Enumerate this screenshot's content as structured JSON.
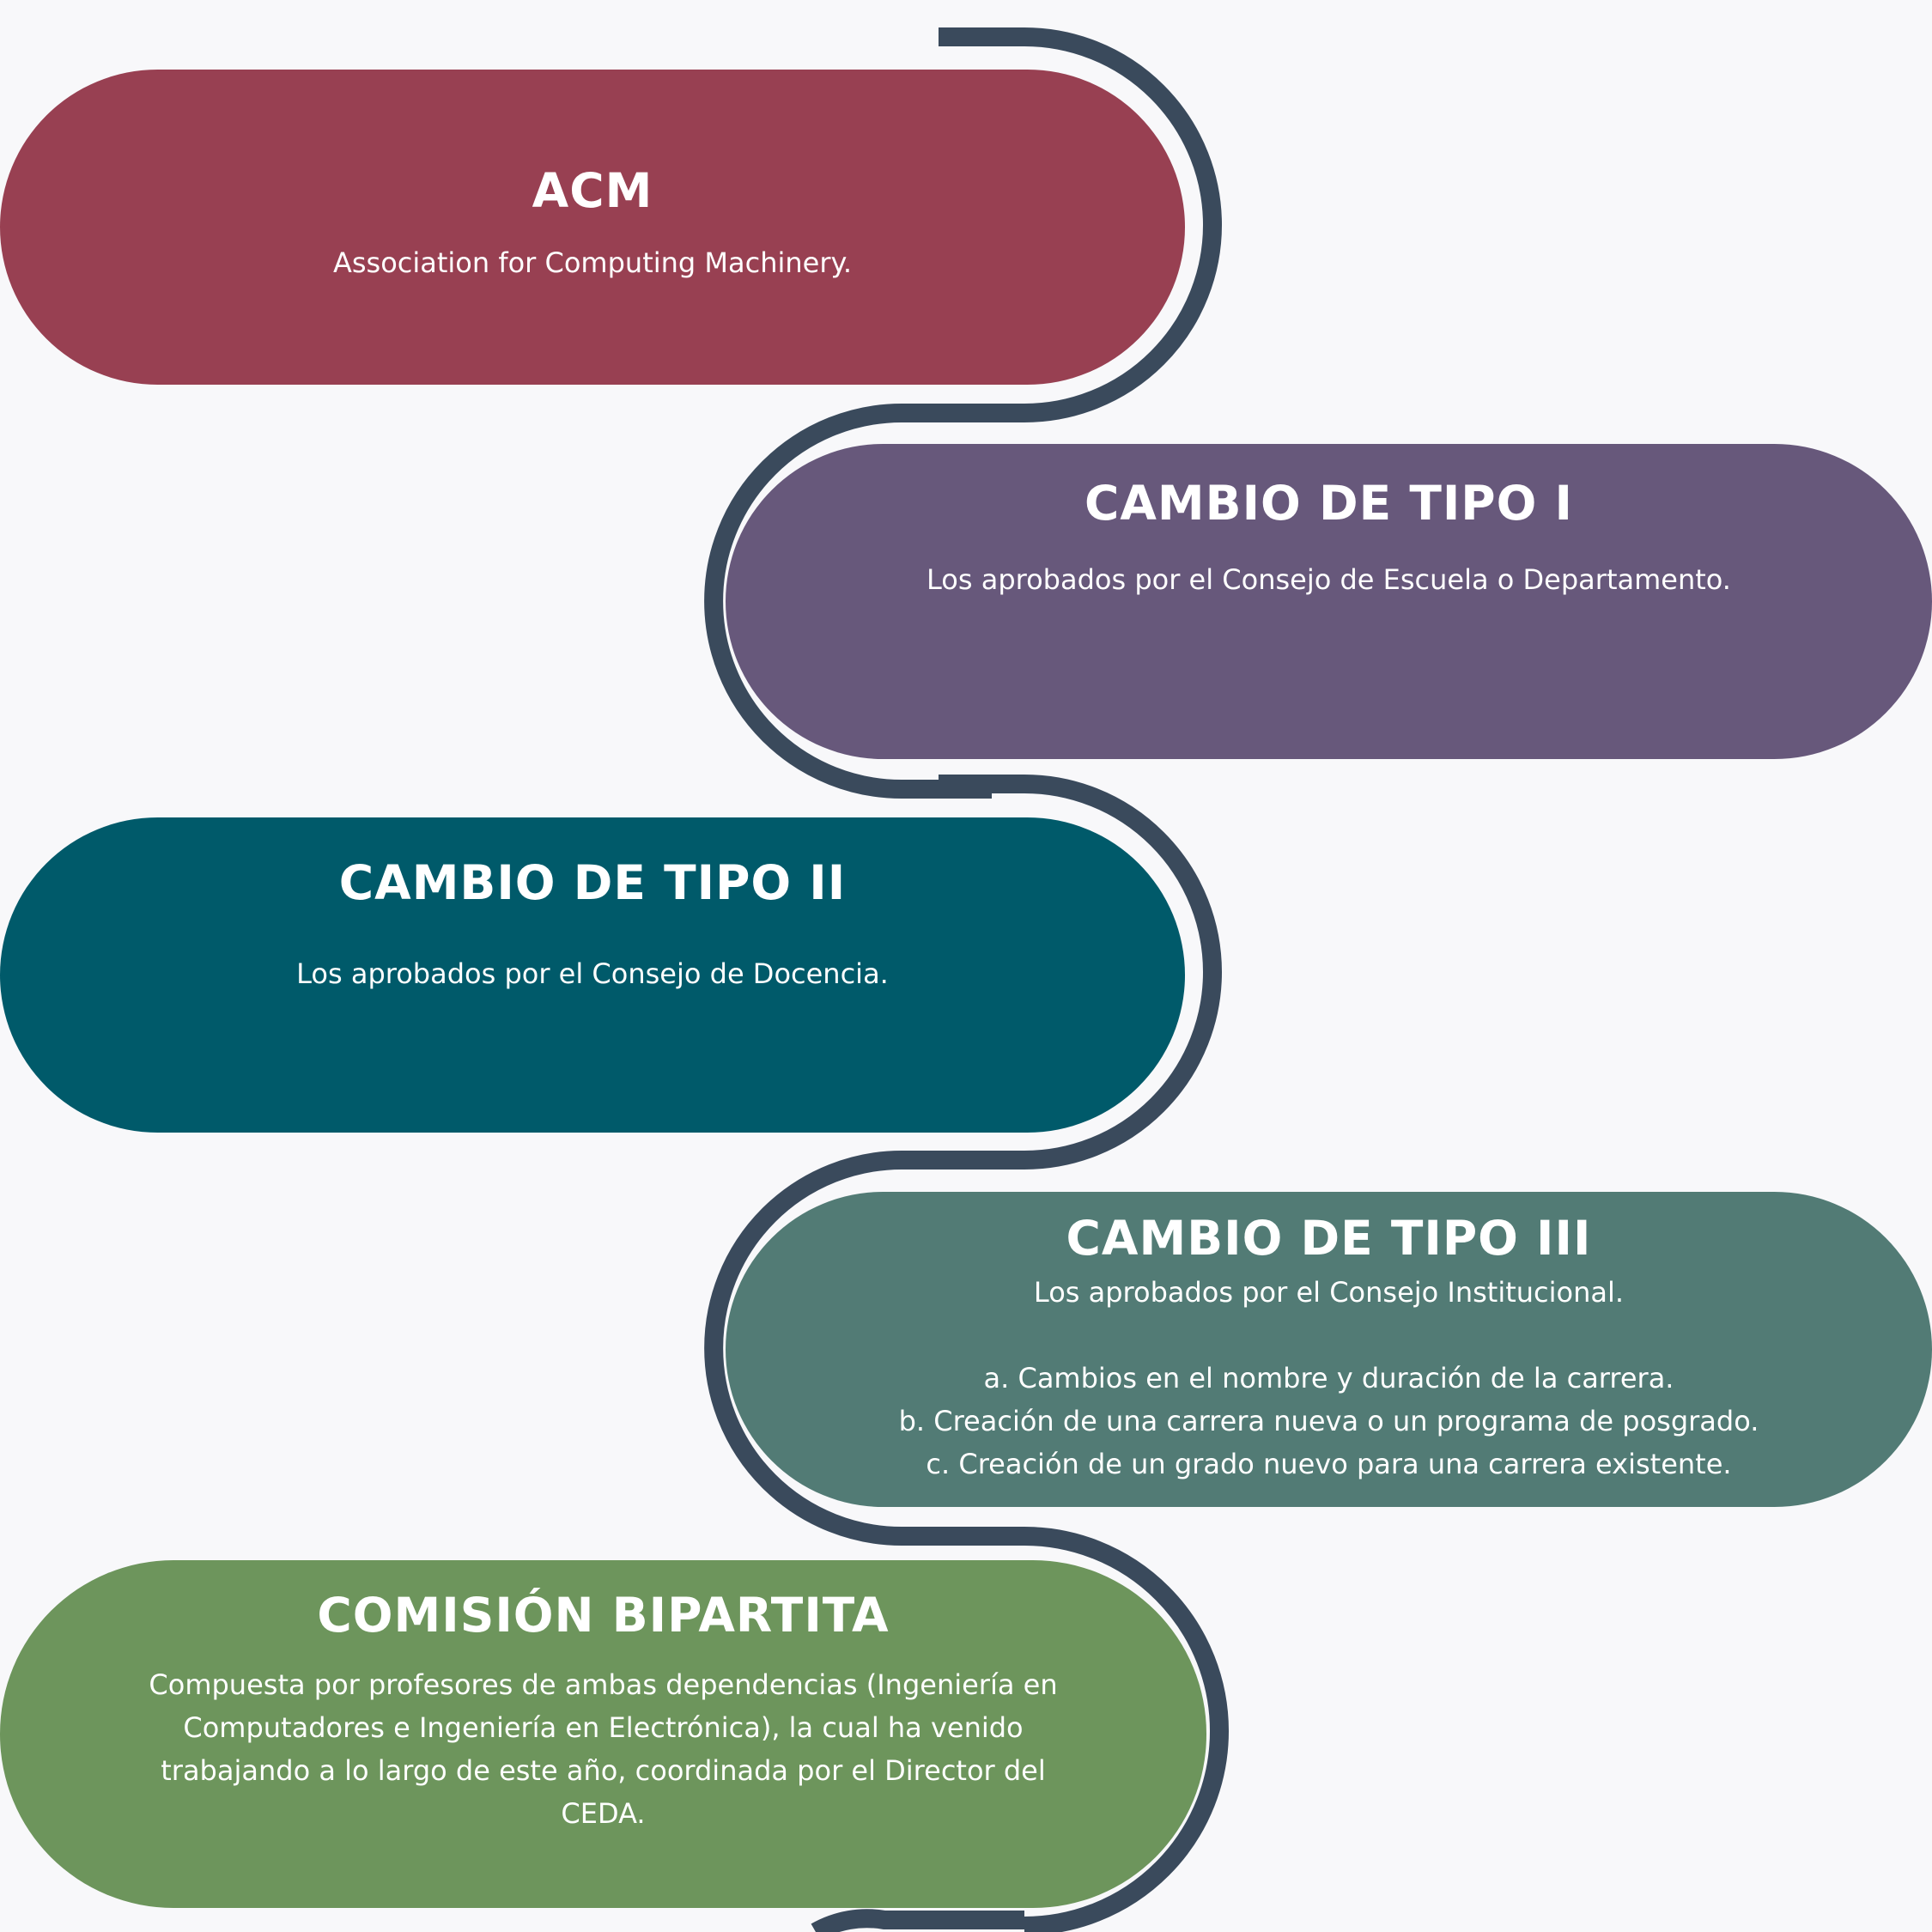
{
  "colors": {
    "background": "#f8f8fa",
    "connector": "#3a4a5c",
    "acm": "#984052",
    "tipo1": "#67587b",
    "tipo2": "#005a6a",
    "tipo3": "#527b75",
    "comision": "#6d955c",
    "text": "#ffffff"
  },
  "cards": {
    "acm": {
      "title": "ACM",
      "lines": [
        "Association for Computing Machinery."
      ]
    },
    "tipo1": {
      "title": "CAMBIO DE TIPO I",
      "lines": [
        "Los aprobados por el Consejo de Escuela o Departamento."
      ]
    },
    "tipo2": {
      "title": "CAMBIO DE TIPO II",
      "lines": [
        "Los aprobados por el Consejo de Docencia."
      ]
    },
    "tipo3": {
      "title": "CAMBIO DE TIPO III",
      "lines": [
        "Los aprobados por el Consejo Institucional.",
        "",
        "a. Cambios en el nombre y duración de la carrera.",
        "b. Creación de una carrera nueva o un programa de posgrado.",
        "c. Creación de un grado nuevo para una carrera existente."
      ]
    },
    "comision": {
      "title": "COMISIÓN BIPARTITA",
      "lines": [
        "Compuesta por profesores de ambas dependencias (Ingeniería en",
        "Computadores e Ingeniería en Electrónica), la cual ha venido",
        "trabajando a lo largo de este año, coordinada por el Director del",
        "CEDA."
      ]
    }
  }
}
